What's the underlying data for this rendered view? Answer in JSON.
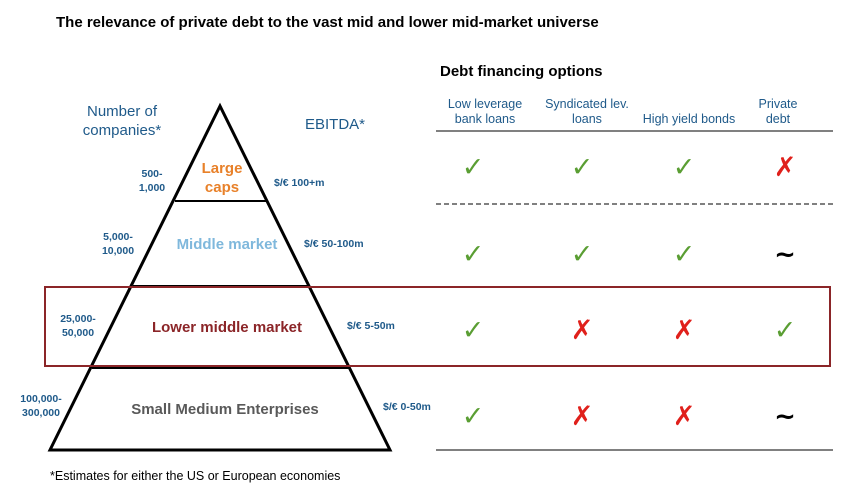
{
  "title": "The relevance of private debt to the vast mid and lower mid-market universe",
  "debt_heading": "Debt financing options",
  "left_axis_heading": [
    "Number of",
    "companies*"
  ],
  "right_axis_heading": "EBITDA*",
  "columns": [
    {
      "line1": "Low leverage",
      "line2": "bank loans"
    },
    {
      "line1": "Syndicated lev.",
      "line2": "loans"
    },
    {
      "line1": "High yield bonds",
      "line2": ""
    },
    {
      "line1": "Private",
      "line2": "debt"
    }
  ],
  "tiers": [
    {
      "label": [
        "Large",
        "caps"
      ],
      "color": "#e8812a",
      "count": [
        "500-",
        "1,000"
      ],
      "ebitda": "$/€ 100+m",
      "marks": [
        "yes",
        "yes",
        "yes",
        "no"
      ]
    },
    {
      "label": [
        "Middle market"
      ],
      "color": "#7fb8dc",
      "count": [
        "5,000-",
        "10,000"
      ],
      "ebitda": "$/€ 50-100m",
      "marks": [
        "yes",
        "yes",
        "yes",
        "tilde"
      ]
    },
    {
      "label": [
        "Lower middle market"
      ],
      "color": "#8b2528",
      "count": [
        "25,000-",
        "50,000"
      ],
      "ebitda": "$/€ 5-50m",
      "marks": [
        "yes",
        "no",
        "no",
        "yes"
      ],
      "highlighted": true
    },
    {
      "label": [
        "Small Medium Enterprises"
      ],
      "color": "#595959",
      "count": [
        "100,000-",
        "300,000"
      ],
      "ebitda": "$/€ 0-50m",
      "marks": [
        "yes",
        "no",
        "no",
        "tilde"
      ]
    }
  ],
  "mark_glyphs": {
    "yes": "✓",
    "no": "✗",
    "tilde": "~"
  },
  "footnote": "*Estimates for either the US or European economies"
}
